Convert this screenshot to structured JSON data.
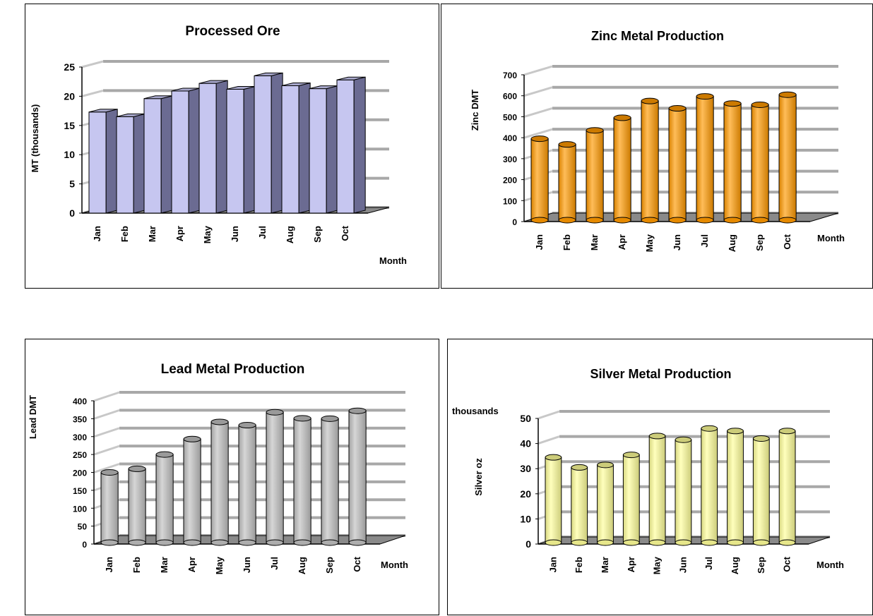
{
  "chart_data": [
    {
      "type": "bar",
      "title": "Processed Ore",
      "ylabel": "MT (thousands)",
      "xlabel": "Month",
      "categories": [
        "Jan",
        "Feb",
        "Mar",
        "Apr",
        "May",
        "Jun",
        "Jul",
        "Aug",
        "Sep",
        "Oct"
      ],
      "values": [
        17.3,
        16.5,
        19.6,
        20.9,
        22.2,
        21.2,
        23.5,
        21.8,
        21.3,
        22.8
      ],
      "ylim": [
        0,
        25
      ],
      "yticks": [
        "0",
        "5",
        "10",
        "15",
        "20",
        "25"
      ],
      "grid": true,
      "legend": "none",
      "bar_color": "#c6c6f0",
      "bar_side_color": "#6b6b92"
    },
    {
      "type": "bar",
      "title": "Zinc Metal Production",
      "ylabel": "Zinc DMT",
      "xlabel": "Month",
      "categories": [
        "Jan",
        "Feb",
        "Mar",
        "Apr",
        "May",
        "Jun",
        "Jul",
        "Aug",
        "Sep",
        "Oct"
      ],
      "values": [
        395,
        368,
        435,
        495,
        575,
        540,
        597,
        563,
        557,
        605
      ],
      "ylim": [
        0,
        700
      ],
      "yticks": [
        "0",
        "100",
        "200",
        "300",
        "400",
        "500",
        "600",
        "700"
      ],
      "grid": true,
      "legend": "none",
      "bar_color": "#ff9900"
    },
    {
      "type": "bar",
      "title": "Lead Metal Production",
      "ylabel": "Lead DMT",
      "xlabel": "Month",
      "categories": [
        "Jan",
        "Feb",
        "Mar",
        "Apr",
        "May",
        "Jun",
        "Jul",
        "Aug",
        "Sep",
        "Oct"
      ],
      "values": [
        200,
        210,
        250,
        293,
        341,
        332,
        368,
        351,
        350,
        372
      ],
      "ylim": [
        0,
        400
      ],
      "yticks": [
        "0",
        "50",
        "100",
        "150",
        "200",
        "250",
        "300",
        "350",
        "400"
      ],
      "grid": true,
      "legend": "none",
      "bar_color": "#c0c0c0"
    },
    {
      "type": "bar",
      "title": "Silver Metal Production",
      "ylabel": "Silver oz",
      "unit_label": "thousands",
      "xlabel": "Month",
      "categories": [
        "Jan",
        "Feb",
        "Mar",
        "Apr",
        "May",
        "Jun",
        "Jul",
        "Aug",
        "Sep",
        "Oct"
      ],
      "values": [
        34.5,
        30.5,
        31.5,
        35.5,
        43,
        41.5,
        46,
        45,
        42,
        45
      ],
      "ylim": [
        0,
        50
      ],
      "yticks": [
        "0",
        "10",
        "20",
        "30",
        "40",
        "50"
      ],
      "grid": true,
      "legend": "none",
      "bar_color": "#ffff99"
    }
  ]
}
